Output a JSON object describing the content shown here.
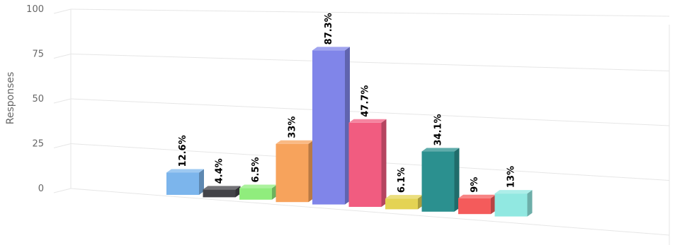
{
  "chart_data": {
    "type": "bar",
    "title": "",
    "xlabel": "",
    "ylabel": "Responses",
    "ylim": [
      0,
      100
    ],
    "yticks": [
      0,
      25,
      50,
      75,
      100
    ],
    "yticks_text": [
      "0",
      "25",
      "50",
      "75",
      "100"
    ],
    "grid": true,
    "legend": "none",
    "three_d": true,
    "values": [
      12.6,
      4.4,
      6.5,
      33,
      87.3,
      47.7,
      6.1,
      34.1,
      9,
      13
    ],
    "data_labels": [
      "12.6%",
      "4.4%",
      "6.5%",
      "33%",
      "87.3%",
      "47.7%",
      "6.1%",
      "34.1%",
      "9%",
      "13%"
    ],
    "colors": [
      "#7cb5ec",
      "#434348",
      "#90ed7d",
      "#f7a35c",
      "#8085e9",
      "#f15c80",
      "#e4d354",
      "#2b908f",
      "#f45b5b",
      "#91e8e1"
    ]
  }
}
